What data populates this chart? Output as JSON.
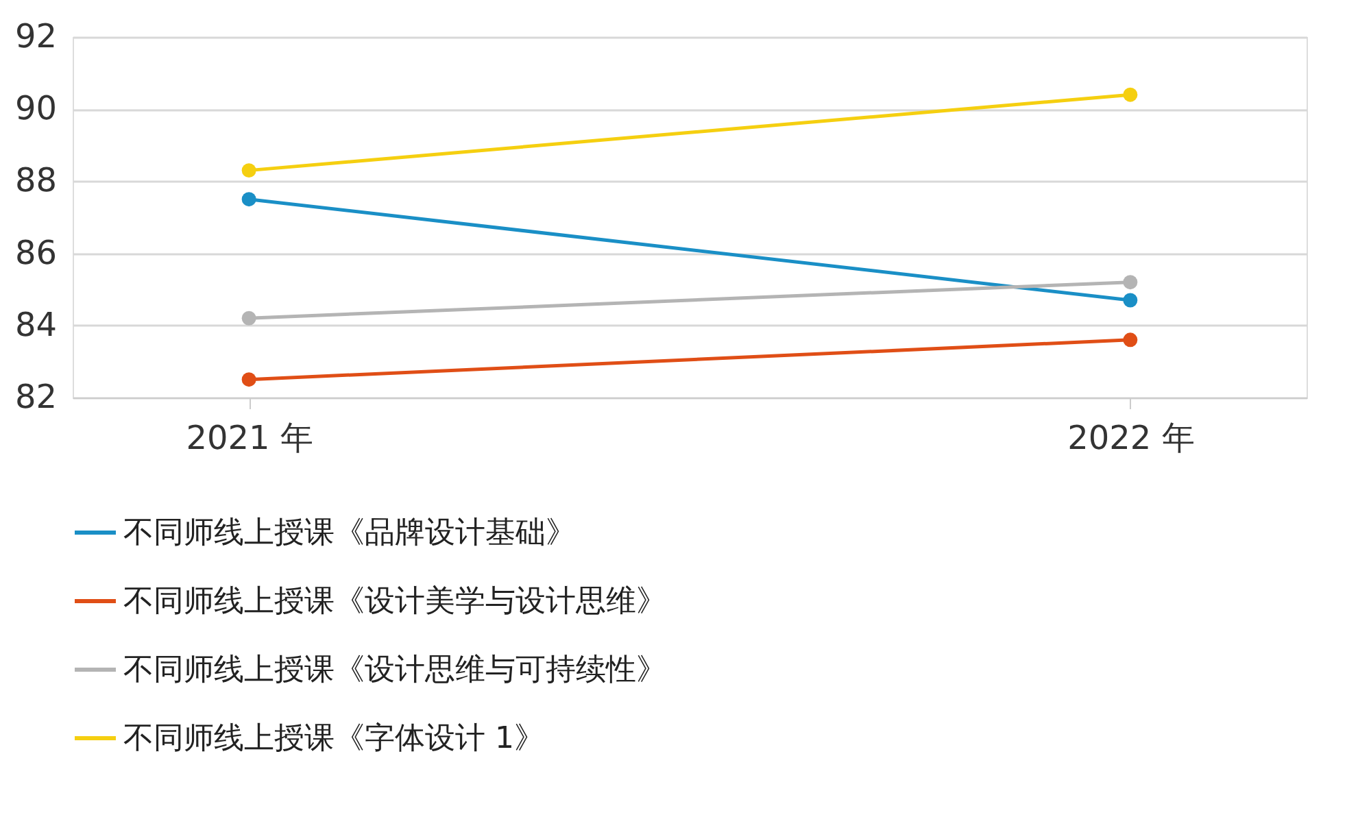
{
  "chart_data": {
    "type": "line",
    "categories": [
      "2021 年",
      "2022 年"
    ],
    "series": [
      {
        "name": "不同师线上授课《品牌设计基础》",
        "color": "#1a8fc6",
        "values": [
          87.5,
          84.7
        ]
      },
      {
        "name": "不同师线上授课《设计美学与设计思维》",
        "color": "#e04e16",
        "values": [
          82.5,
          83.6
        ]
      },
      {
        "name": "不同师线上授课《设计思维与可持续性》",
        "color": "#b4b4b4",
        "values": [
          84.2,
          85.2
        ]
      },
      {
        "name": "不同师线上授课《字体设计 1》",
        "color": "#f5cf10",
        "values": [
          88.3,
          90.4
        ]
      }
    ],
    "ylim": [
      82,
      92
    ],
    "yticks": [
      82,
      84,
      86,
      88,
      90,
      92
    ],
    "grid": "y",
    "legend": "bottom",
    "marker": "circle",
    "line_style": "solid"
  }
}
